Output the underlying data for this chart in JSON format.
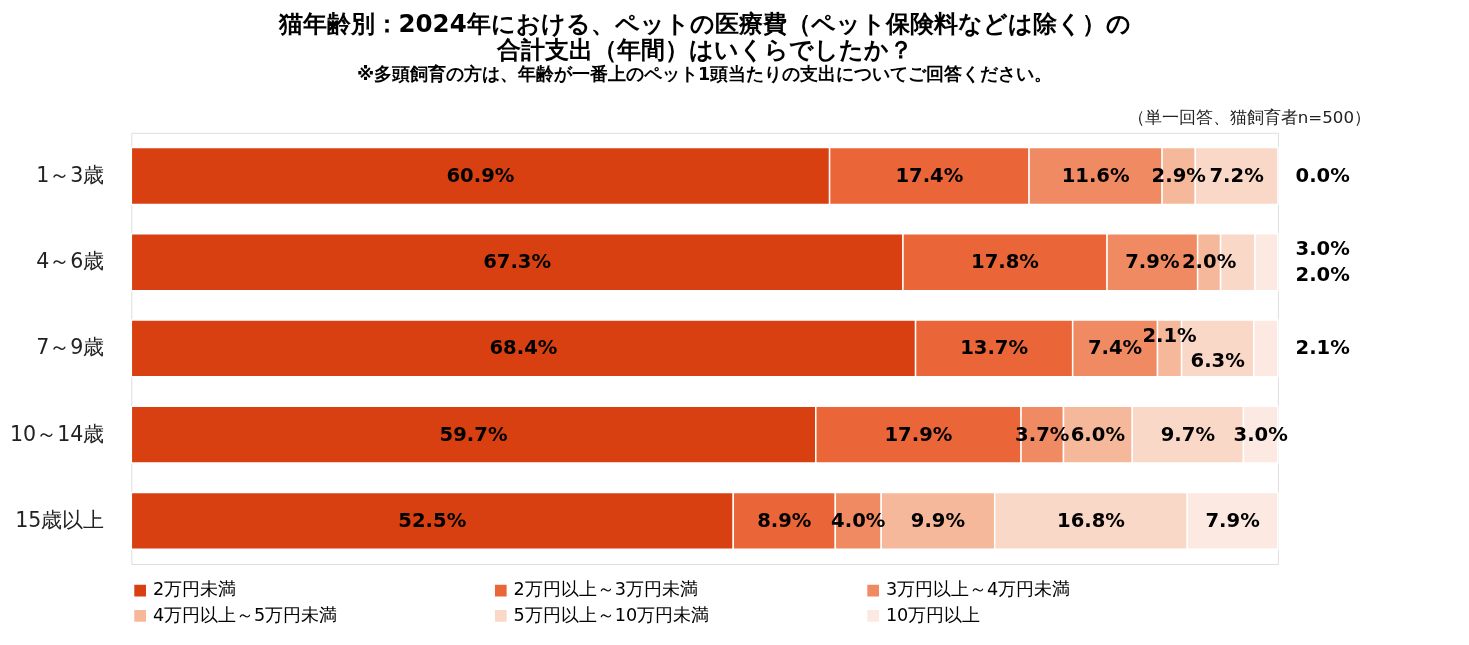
{
  "chart_data": {
    "type": "bar",
    "orientation": "horizontal",
    "stacked": true,
    "grid": false,
    "legend": "bottom",
    "title": [
      "猫年齢別：2024年における、ペットの医療費（ペット保険料などは除く）の",
      "合計支出（年間）はいくらでしたか？"
    ],
    "subtitle": "※多頭飼育の方は、年齢が一番上のペット1頭当たりの支出についてご回答ください。",
    "annotations": [
      "（単一回答、猫飼育者n=500）"
    ],
    "categories": [
      "1～3歳",
      "4～6歳",
      "7～9歳",
      "10～14歳",
      "15歳以上"
    ],
    "series": [
      {
        "name": "2万円未満",
        "color": "#d84012",
        "values": [
          60.9,
          67.3,
          68.4,
          59.7,
          52.5
        ],
        "value_labels": [
          "60.9%",
          "67.3%",
          "68.4%",
          "59.7%",
          "52.5%"
        ]
      },
      {
        "name": "2万円以上～3万円未満",
        "color": "#ea6538",
        "values": [
          17.4,
          17.8,
          13.7,
          17.9,
          8.9
        ],
        "value_labels": [
          "17.4%",
          "17.8%",
          "13.7%",
          "17.9%",
          "8.9%"
        ]
      },
      {
        "name": "3万円以上～4万円未満",
        "color": "#f08a62",
        "values": [
          11.6,
          7.9,
          7.4,
          3.7,
          4.0
        ],
        "value_labels": [
          "11.6%",
          "7.9%",
          "7.4%",
          "3.7%",
          "4.0%"
        ]
      },
      {
        "name": "4万円以上～5万円未満",
        "color": "#f6b89a",
        "values": [
          2.9,
          2.0,
          2.1,
          6.0,
          9.9
        ],
        "value_labels": [
          "2.9%",
          "2.0%",
          "2.1%",
          "6.0%",
          "9.9%"
        ]
      },
      {
        "name": "5万円以上～10万円未満",
        "color": "#f9d8c7",
        "values": [
          7.2,
          3.0,
          6.3,
          9.7,
          16.8
        ],
        "value_labels": [
          "7.2%",
          "3.0%",
          "6.3%",
          "9.7%",
          "16.8%"
        ]
      },
      {
        "name": "10万円以上",
        "color": "#fce9e1",
        "values": [
          0.0,
          2.0,
          2.1,
          3.0,
          7.9
        ],
        "value_labels": [
          "0.0%",
          "2.0%",
          "2.1%",
          "3.0%",
          "7.9%"
        ]
      }
    ]
  }
}
